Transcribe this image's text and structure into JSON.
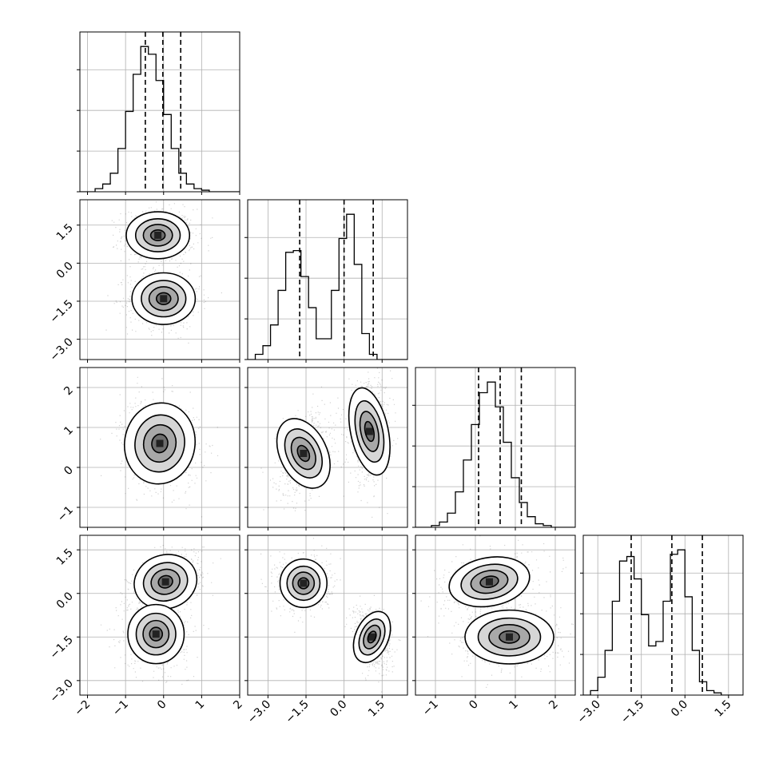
{
  "chart_data": {
    "type": "corner",
    "title": "",
    "n_params": 4,
    "grid": true,
    "colors": {
      "hist": "#000000",
      "contour": "#000000",
      "points": "#000000",
      "grid": "#b0b0b0"
    },
    "axes": [
      {
        "range": [
          -2.2,
          2.0
        ],
        "ticks": [
          -2,
          -1,
          0,
          1,
          2
        ],
        "tick_labels": [
          "−2",
          "−1",
          "0",
          "1",
          "2"
        ]
      },
      {
        "range": [
          -3.8,
          2.5
        ],
        "ticks": [
          -3.0,
          -1.5,
          0.0,
          1.5
        ],
        "tick_labels": [
          "−3.0",
          "−1.5",
          "0.0",
          "1.5"
        ]
      },
      {
        "range": [
          -1.5,
          2.5
        ],
        "ticks": [
          -1,
          0,
          1,
          2
        ],
        "tick_labels": [
          "−1",
          "0",
          "1",
          "2"
        ]
      },
      {
        "range": [
          -3.5,
          2.0
        ],
        "ticks": [
          -3.0,
          -1.5,
          0.0,
          1.5
        ],
        "tick_labels": [
          "−3.0",
          "−1.5",
          "0.0",
          "1.5"
        ]
      }
    ],
    "histograms": [
      {
        "param": 0,
        "edges_start": -2.2,
        "bin_width": 0.2,
        "counts": [
          0,
          0,
          2,
          5,
          12,
          28,
          52,
          76,
          94,
          89,
          72,
          50,
          28,
          12,
          5,
          2,
          1,
          0,
          0,
          0,
          0
        ],
        "quantiles": [
          -0.48,
          -0.02,
          0.45
        ]
      },
      {
        "param": 1,
        "edges_start": -3.8,
        "bin_width": 0.3,
        "counts": [
          0,
          3,
          8,
          20,
          40,
          62,
          63,
          48,
          30,
          12,
          12,
          40,
          70,
          84,
          55,
          15,
          3,
          0,
          0,
          0,
          0
        ],
        "quantiles": [
          -1.75,
          0.0,
          1.15
        ]
      },
      {
        "param": 2,
        "edges_start": -1.5,
        "bin_width": 0.2,
        "counts": [
          0,
          0,
          1,
          3,
          8,
          20,
          38,
          58,
          76,
          82,
          68,
          48,
          28,
          14,
          6,
          2,
          1,
          0,
          0,
          0
        ],
        "quantiles": [
          0.08,
          0.62,
          1.15
        ]
      },
      {
        "param": 3,
        "edges_start": -3.5,
        "bin_width": 0.25,
        "counts": [
          0,
          2,
          8,
          20,
          42,
          60,
          62,
          52,
          36,
          22,
          24,
          42,
          63,
          65,
          44,
          20,
          6,
          2,
          1,
          0,
          0,
          0
        ],
        "quantiles": [
          -1.85,
          -0.45,
          0.6
        ]
      }
    ],
    "pairs": [
      {
        "x": 0,
        "y": 1,
        "clusters": [
          {
            "cx": -0.15,
            "cy": 1.1,
            "sx": 0.45,
            "sy": 0.5,
            "rho": 0.0
          },
          {
            "cx": 0.0,
            "cy": -1.4,
            "sx": 0.45,
            "sy": 0.55,
            "rho": 0.0
          }
        ]
      },
      {
        "x": 0,
        "y": 2,
        "clusters": [
          {
            "cx": -0.1,
            "cy": 0.6,
            "sx": 0.5,
            "sy": 0.55,
            "rho": -0.15
          }
        ]
      },
      {
        "x": 1,
        "y": 2,
        "clusters": [
          {
            "cx": -1.6,
            "cy": 0.35,
            "sx": 0.5,
            "sy": 0.5,
            "rho": 0.35
          },
          {
            "cx": 1.0,
            "cy": 0.9,
            "sx": 0.4,
            "sy": 0.6,
            "rho": 0.1
          }
        ]
      },
      {
        "x": 0,
        "y": 3,
        "clusters": [
          {
            "cx": 0.05,
            "cy": 0.4,
            "sx": 0.45,
            "sy": 0.5,
            "rho": 0.4
          },
          {
            "cx": -0.2,
            "cy": -1.4,
            "sx": 0.4,
            "sy": 0.55,
            "rho": 0.0
          }
        ]
      },
      {
        "x": 1,
        "y": 3,
        "clusters": [
          {
            "cx": -1.6,
            "cy": 0.35,
            "sx": 0.5,
            "sy": 0.45,
            "rho": 0.0
          },
          {
            "cx": 1.1,
            "cy": -1.5,
            "sx": 0.35,
            "sy": 0.5,
            "rho": -0.3
          }
        ]
      },
      {
        "x": 2,
        "y": 3,
        "clusters": [
          {
            "cx": 0.35,
            "cy": 0.4,
            "sx": 0.55,
            "sy": 0.45,
            "rho": 0.35
          },
          {
            "cx": 0.85,
            "cy": -1.5,
            "sx": 0.6,
            "sy": 0.5,
            "rho": 0.0
          }
        ]
      }
    ]
  }
}
